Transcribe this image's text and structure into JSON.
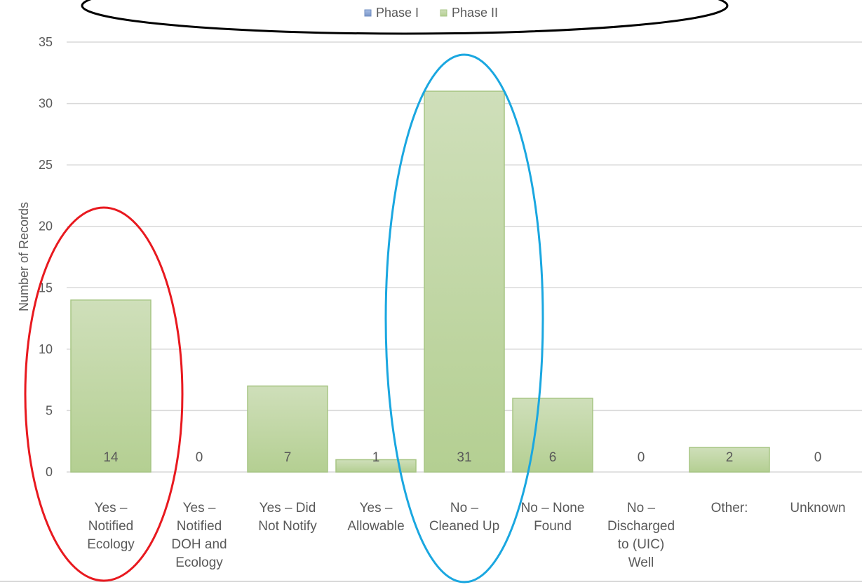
{
  "chart_data": {
    "type": "bar",
    "ylabel": "Number of Records",
    "ylim": [
      0,
      35
    ],
    "yticks": [
      0,
      5,
      10,
      15,
      20,
      25,
      30,
      35
    ],
    "grid": true,
    "legend_position": "top",
    "categories": [
      [
        "Yes –",
        "Notified",
        "Ecology"
      ],
      [
        "Yes –",
        "Notified",
        "DOH and",
        "Ecology"
      ],
      [
        "Yes – Did",
        "Not Notify"
      ],
      [
        "Yes –",
        "Allowable"
      ],
      [
        "No –",
        "Cleaned Up"
      ],
      [
        "No – None",
        "Found"
      ],
      [
        "No –",
        "Discharged",
        "to (UIC)",
        "Well"
      ],
      [
        "Other:"
      ],
      [
        "Unknown"
      ]
    ],
    "series": [
      {
        "name": "Phase I",
        "color": "#8aa6d6",
        "values": [
          0,
          0,
          0,
          0,
          0,
          0,
          0,
          0,
          0
        ]
      },
      {
        "name": "Phase II",
        "color": "#bcd49e",
        "values": [
          14,
          0,
          7,
          1,
          31,
          6,
          0,
          2,
          0
        ]
      }
    ],
    "data_labels": [
      "14",
      "0",
      "7",
      "1",
      "31",
      "6",
      "0",
      "2",
      "0"
    ],
    "annotations": [
      {
        "shape": "ellipse",
        "color": "#e8191f",
        "category_index": 0
      },
      {
        "shape": "ellipse",
        "color": "#1aa7e0",
        "category_index": 4
      },
      {
        "shape": "ellipse",
        "color": "#000000",
        "around": "legend"
      }
    ]
  }
}
